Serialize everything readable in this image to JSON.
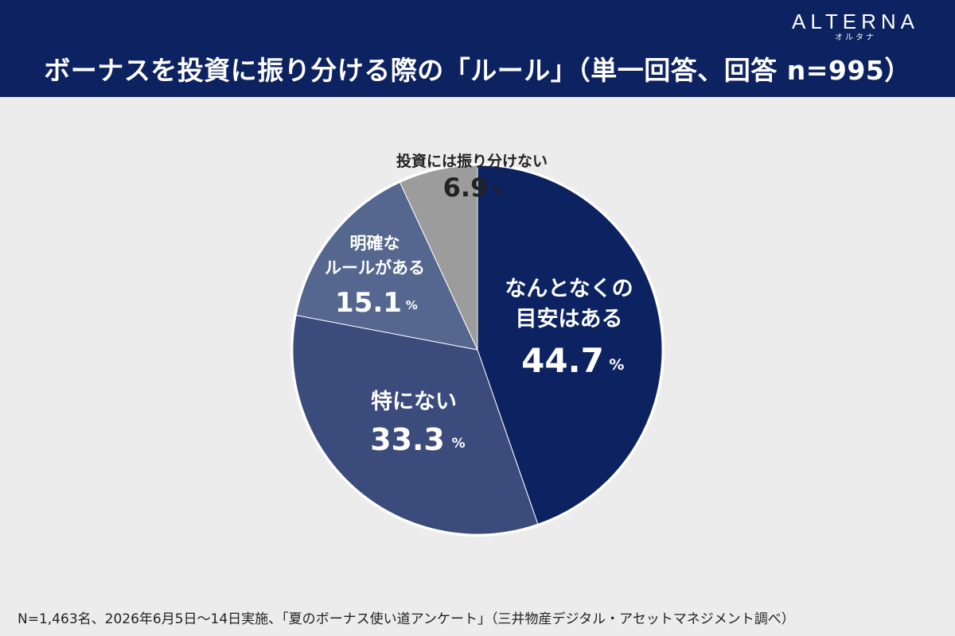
{
  "header": {
    "title": "ボーナスを投資に振り分ける際の「ルール」（単一回答、回答 n=995）",
    "logo_main": "ALTERNA",
    "logo_sub": "オルタナ"
  },
  "footer": {
    "note": "N=1,463名、2026年6月5日〜14日実施、「夏のボーナス使い道アンケート」（三井物産デジタル・アセットマネジメント調べ）"
  },
  "colors": {
    "header_bg": "#0d2260",
    "page_bg": "#ececec"
  },
  "chart_data": {
    "type": "pie",
    "title": "ボーナスを投資に振り分ける際の「ルール」（単一回答、回答 n=995）",
    "start": "12 o'clock",
    "direction": "clockwise",
    "percent_sign": "%",
    "slices": [
      {
        "label_lines": [
          "なんとなくの",
          "目安はある"
        ],
        "value": 44.7,
        "value_text": "44.7",
        "color": "#0d2260",
        "text_color": "#ffffff"
      },
      {
        "label_lines": [
          "特にない"
        ],
        "value": 33.3,
        "value_text": "33.3",
        "color": "#3a4b7c",
        "text_color": "#ffffff"
      },
      {
        "label_lines": [
          "明確な",
          "ルールがある"
        ],
        "value": 15.1,
        "value_text": "15.1",
        "color": "#55678f",
        "text_color": "#ffffff"
      },
      {
        "label_lines": [
          "投資には振り分けない"
        ],
        "value": 6.9,
        "value_text": "6.9",
        "color": "#9c9c9c",
        "text_color": "#222222"
      }
    ]
  }
}
